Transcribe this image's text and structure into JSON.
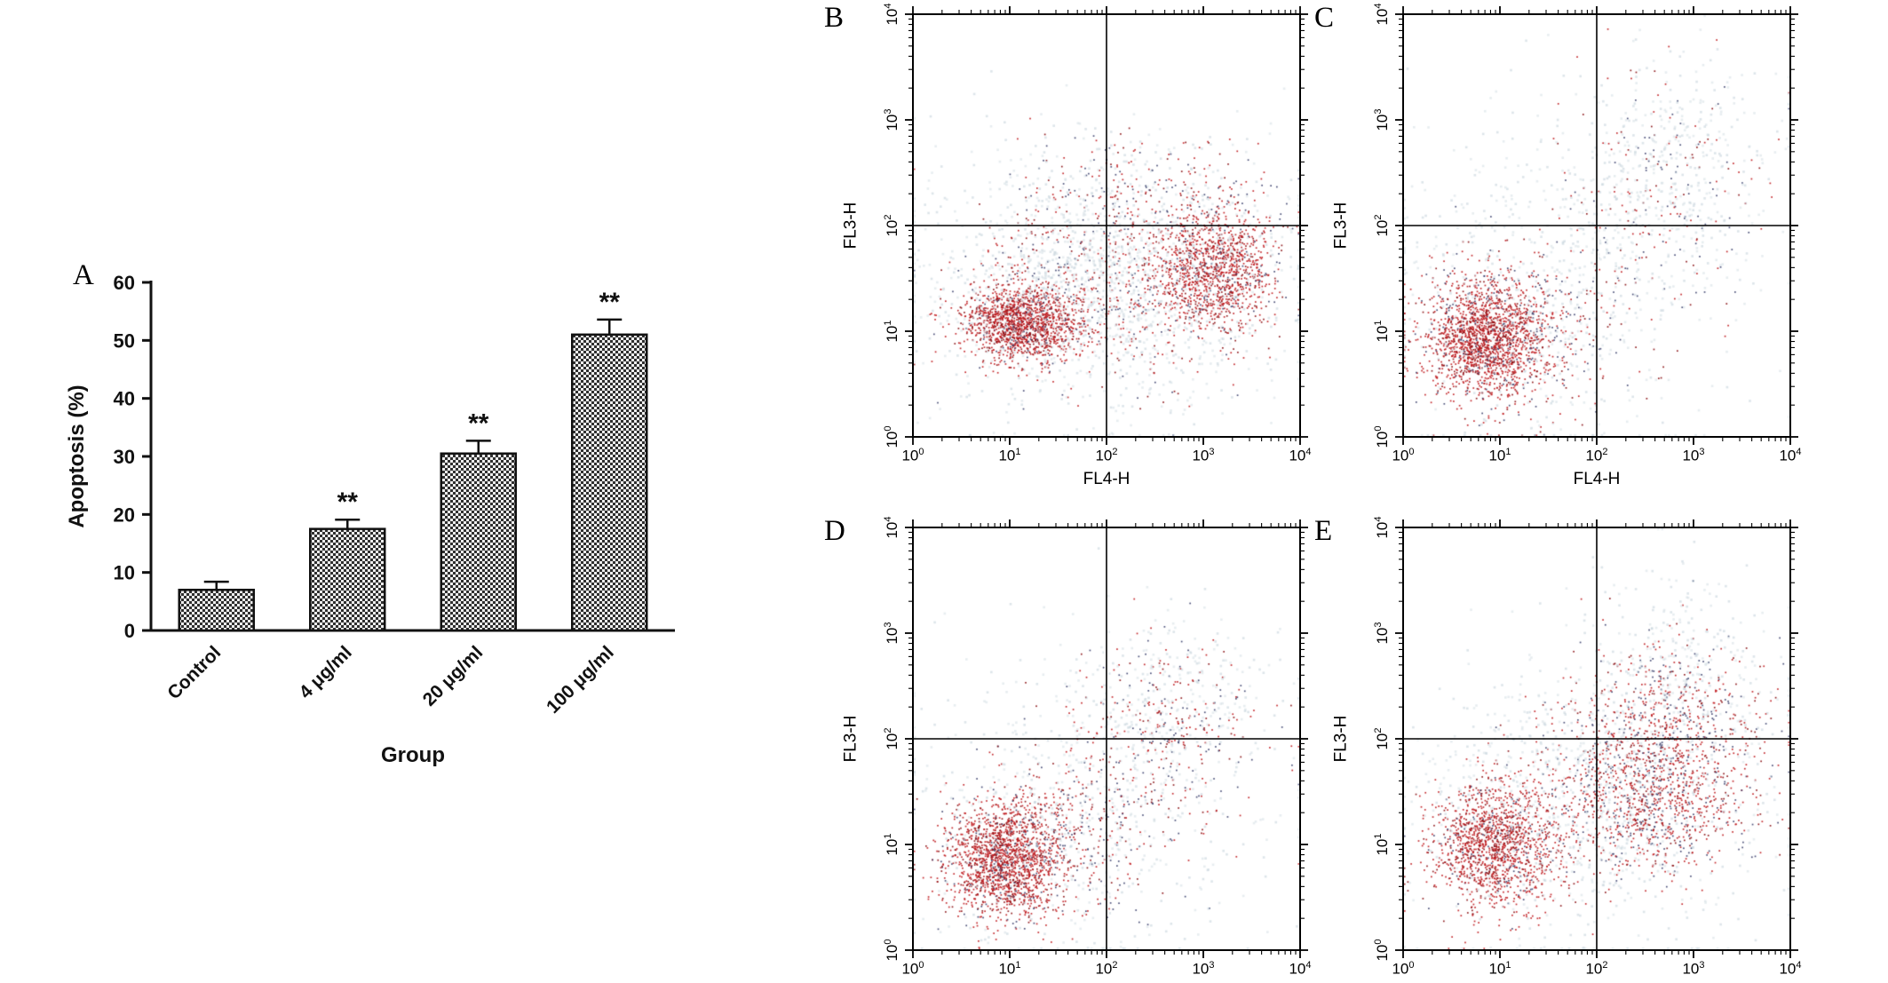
{
  "figure": {
    "bg": "#ffffff",
    "palette": {
      "red": "#bf1a1e",
      "dark_red": "#8a1013",
      "navy": "#3f4470",
      "haze1": "#cfdbe2",
      "haze2": "#bccbd5",
      "axis": "#000000",
      "bar_check_dark": "#2f2f2f",
      "bar_check_light": "#efefef",
      "bar_edge": "#111111"
    }
  },
  "chart_data": [
    {
      "panel": "A",
      "type": "bar",
      "categories": [
        "Control",
        "4 μg/ml",
        "20 μg/ml",
        "100 μg/ml"
      ],
      "values": [
        7,
        17.5,
        30.5,
        51
      ],
      "errors": [
        1.4,
        1.6,
        2.2,
        2.6
      ],
      "significance": [
        "",
        "**",
        "**",
        "**"
      ],
      "xlabel": "Group",
      "ylabel": "Apoptosis (%)",
      "ylim": [
        0,
        60
      ],
      "yticks": [
        0,
        10,
        20,
        30,
        40,
        50,
        60
      ],
      "bar_fill": "checkerboard"
    },
    {
      "panel": "B",
      "type": "scatter",
      "xlabel": "FL4-H",
      "ylabel": "FL3-H",
      "tick_base": "10",
      "x_decades": [
        0,
        1,
        2,
        3,
        4
      ],
      "y_decades": [
        0,
        1,
        2,
        3,
        4
      ],
      "xlim_log": [
        0,
        4
      ],
      "ylim_log": [
        0,
        4
      ],
      "gate_x_log": 2,
      "gate_y_log": 2,
      "seed": 7,
      "clusters": [
        {
          "cx": 1.15,
          "cy": 1.08,
          "sx": 0.3,
          "sy": 0.17,
          "n": 1500,
          "kind": "dense"
        },
        {
          "cx": 3.12,
          "cy": 1.58,
          "sx": 0.3,
          "sy": 0.28,
          "n": 1150,
          "kind": "dense"
        },
        {
          "cx": 2.1,
          "cy": 1.45,
          "sx": 0.78,
          "sy": 0.45,
          "n": 650,
          "kind": "mixed"
        },
        {
          "cx": 2.5,
          "cy": 2.25,
          "sx": 0.7,
          "sy": 0.3,
          "n": 260,
          "kind": "mixed"
        },
        {
          "cx": 1.95,
          "cy": 1.5,
          "sx": 0.95,
          "sy": 0.62,
          "n": 1500,
          "kind": "haze"
        }
      ]
    },
    {
      "panel": "C",
      "type": "scatter",
      "xlabel": "FL4-H",
      "ylabel": "FL3-H",
      "tick_base": "10",
      "x_decades": [
        0,
        1,
        2,
        3,
        4
      ],
      "y_decades": [
        0,
        1,
        2,
        3,
        4
      ],
      "xlim_log": [
        0,
        4
      ],
      "ylim_log": [
        0,
        4
      ],
      "gate_x_log": 2,
      "gate_y_log": 2,
      "seed": 13,
      "clusters": [
        {
          "cx": 0.85,
          "cy": 0.92,
          "sx": 0.3,
          "sy": 0.28,
          "n": 1700,
          "kind": "dense"
        },
        {
          "cx": 1.25,
          "cy": 1.05,
          "sx": 0.55,
          "sy": 0.45,
          "n": 420,
          "kind": "mixed"
        },
        {
          "cx": 2.65,
          "cy": 2.3,
          "sx": 0.55,
          "sy": 0.55,
          "n": 210,
          "kind": "mixed"
        },
        {
          "cx": 1.6,
          "cy": 1.45,
          "sx": 0.9,
          "sy": 0.8,
          "n": 650,
          "kind": "haze"
        },
        {
          "cx": 2.85,
          "cy": 2.55,
          "sx": 0.55,
          "sy": 0.55,
          "n": 380,
          "kind": "haze"
        }
      ]
    },
    {
      "panel": "D",
      "type": "scatter",
      "xlabel": "FL4-H",
      "ylabel": "FL3-H",
      "tick_base": "10",
      "x_decades": [
        0,
        1,
        2,
        3,
        4
      ],
      "y_decades": [
        0,
        1,
        2,
        3,
        4
      ],
      "xlim_log": [
        0,
        4
      ],
      "ylim_log": [
        0,
        4
      ],
      "gate_x_log": 2,
      "gate_y_log": 2,
      "seed": 21,
      "clusters": [
        {
          "cx": 0.95,
          "cy": 0.85,
          "sx": 0.3,
          "sy": 0.28,
          "n": 1600,
          "kind": "dense"
        },
        {
          "cx": 1.5,
          "cy": 1.05,
          "sx": 0.55,
          "sy": 0.38,
          "n": 480,
          "kind": "mixed"
        },
        {
          "cx": 2.55,
          "cy": 2.05,
          "sx": 0.5,
          "sy": 0.45,
          "n": 360,
          "kind": "mixed"
        },
        {
          "cx": 2.7,
          "cy": 2.4,
          "sx": 0.5,
          "sy": 0.4,
          "n": 240,
          "kind": "haze"
        },
        {
          "cx": 1.7,
          "cy": 1.3,
          "sx": 0.9,
          "sy": 0.7,
          "n": 600,
          "kind": "haze"
        }
      ]
    },
    {
      "panel": "E",
      "type": "scatter",
      "xlabel": "FL4-H",
      "ylabel": "FL3-H",
      "tick_base": "10",
      "x_decades": [
        0,
        1,
        2,
        3,
        4
      ],
      "y_decades": [
        0,
        1,
        2,
        3,
        4
      ],
      "xlim_log": [
        0,
        4
      ],
      "ylim_log": [
        0,
        4
      ],
      "gate_x_log": 2,
      "gate_y_log": 2,
      "seed": 29,
      "clusters": [
        {
          "cx": 0.95,
          "cy": 1.0,
          "sx": 0.33,
          "sy": 0.3,
          "n": 1500,
          "kind": "dense"
        },
        {
          "cx": 2.55,
          "cy": 1.5,
          "sx": 0.52,
          "sy": 0.4,
          "n": 1300,
          "kind": "mixed-dense"
        },
        {
          "cx": 2.8,
          "cy": 2.3,
          "sx": 0.5,
          "sy": 0.35,
          "n": 420,
          "kind": "mixed"
        },
        {
          "cx": 1.85,
          "cy": 1.45,
          "sx": 0.95,
          "sy": 0.7,
          "n": 850,
          "kind": "haze"
        },
        {
          "cx": 2.9,
          "cy": 2.6,
          "sx": 0.5,
          "sy": 0.5,
          "n": 280,
          "kind": "haze"
        }
      ]
    }
  ]
}
